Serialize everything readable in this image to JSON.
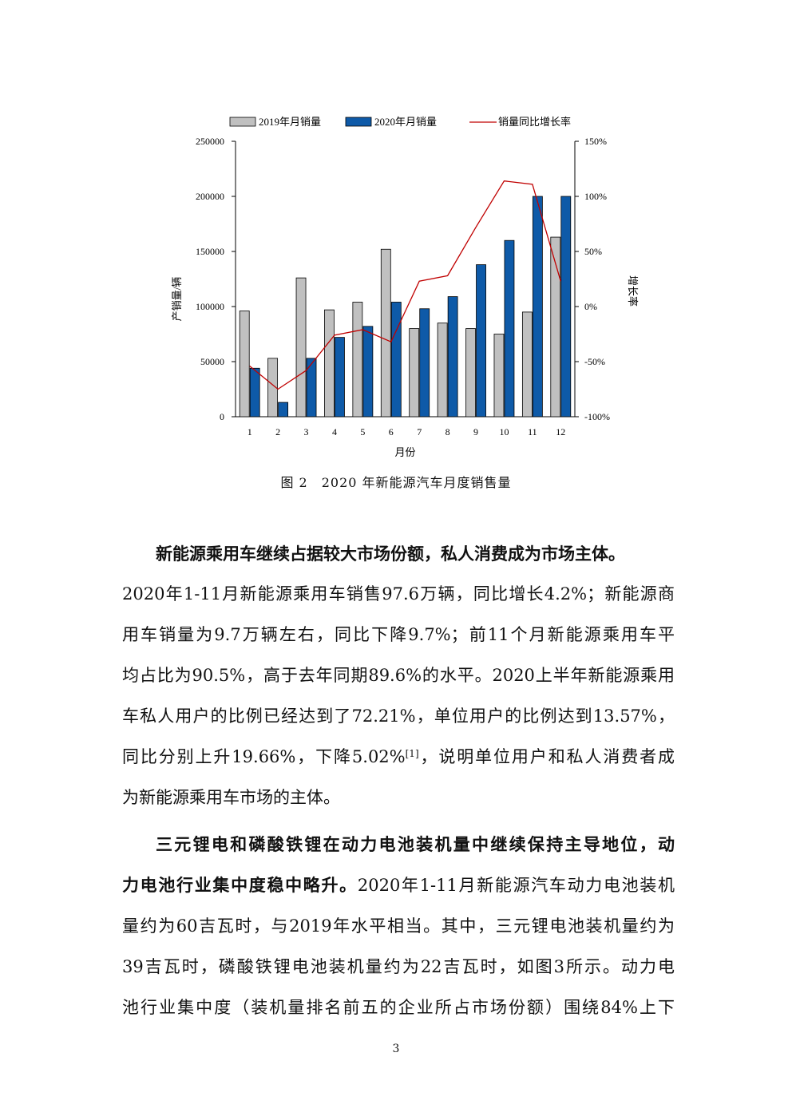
{
  "chart_data": {
    "type": "bar",
    "categories": [
      "1",
      "2",
      "3",
      "4",
      "5",
      "6",
      "7",
      "8",
      "9",
      "10",
      "11",
      "12"
    ],
    "series": [
      {
        "name": "2019年月销量",
        "color": "#c0c0c0",
        "values": [
          96000,
          53000,
          126000,
          97000,
          104000,
          152000,
          80000,
          85000,
          80000,
          75000,
          95000,
          163000
        ]
      },
      {
        "name": "2020年月销量",
        "color": "#0e5aa8",
        "values": [
          44000,
          13000,
          53000,
          72000,
          82000,
          104000,
          98000,
          109000,
          138000,
          160000,
          200000,
          200000
        ]
      }
    ],
    "line": {
      "name": "销量同比增长率",
      "color": "#c00000",
      "values": [
        -54,
        -75,
        -58,
        -26,
        -21,
        -32,
        23,
        28,
        72,
        114,
        111,
        23
      ]
    },
    "xlabel": "月份",
    "ylabel": "产销量/辆",
    "y2label": "增长率",
    "ylim": [
      0,
      250000
    ],
    "yticks": [
      "0",
      "50000",
      "100000",
      "150000",
      "200000",
      "250000"
    ],
    "y2lim": [
      -100,
      150
    ],
    "y2ticks": [
      "-100%",
      "-50%",
      "0%",
      "50%",
      "100%",
      "150%"
    ],
    "legend_position": "top"
  },
  "caption": "图 2　2020 年新能源汽车月度销售量",
  "para1": {
    "bold_lead": "新能源乘用车继续占据较大市场份额，私人消费成为市场主体。",
    "lines": [
      "2020年1-11月新能源乘用车销售97.6万辆，同比增长4.2%；新能源商",
      "用车销量为9.7万辆左右，同比下降9.7%；前11个月新能源乘用车平",
      "均占比为90.5%，高于去年同期89.6%的水平。2020上半年新能源乘用",
      "车私人用户的比例已经达到了72.21%，单位用户的比例达到13.57%，"
    ],
    "line5_pre": "同比分别上升19.66%，下降5.02%",
    "ref": "[1]",
    "line5_post": "，说明单位用户和私人消费者成",
    "line6": "为新能源乘用车市场的主体。"
  },
  "para2": {
    "bold_line1": "三元锂电和磷酸铁锂在动力电池装机量中继续保持主导地位，动",
    "bold_line2": "力电池行业集中度稳中略升。",
    "line2_rest": "2020年1-11月新能源汽车动力电池装机",
    "lines": [
      "量约为60吉瓦时，与2019年水平相当。其中，三元锂电池装机量约为",
      "39吉瓦时，磷酸铁锂电池装机量约为22吉瓦时，如图3所示。动力电",
      "池行业集中度（装机量排名前五的企业所占市场份额）围绕84%上下"
    ]
  },
  "page_number": "3"
}
